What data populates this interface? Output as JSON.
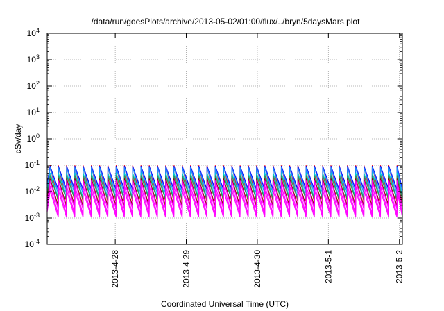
{
  "chart_data": {
    "type": "line",
    "title": "/data/run/goesPlots/archive/2013-05-02/01:00/flux/../bryn/5daysMars.plot",
    "xlabel": "Coordinated Universal Time (UTC)",
    "ylabel": "cSv/day",
    "y_scale": "log",
    "ylim": [
      0.0001,
      10000
    ],
    "xlim": [
      "2013-04-27 01:00",
      "2013-05-02 01:00"
    ],
    "grid": true,
    "legend": "none",
    "x_ticks": [
      "2013-4-28",
      "2013-4-29",
      "2013-4-30",
      "2013-5-1",
      "2013-5-2"
    ],
    "y_ticks": [
      {
        "base": "10",
        "exp": "-4",
        "value": 0.0001
      },
      {
        "base": "10",
        "exp": "-3",
        "value": 0.001
      },
      {
        "base": "10",
        "exp": "-2",
        "value": 0.01
      },
      {
        "base": "10",
        "exp": "-1",
        "value": 0.1
      },
      {
        "base": "10",
        "exp": "0",
        "value": 1
      },
      {
        "base": "10",
        "exp": "1",
        "value": 10
      },
      {
        "base": "10",
        "exp": "2",
        "value": 100
      },
      {
        "base": "10",
        "exp": "3",
        "value": 1000
      },
      {
        "base": "10",
        "exp": "4",
        "value": 10000
      }
    ],
    "oscillation": {
      "cycles_per_day": 8.6,
      "start_date": "2013-04-27 02:00"
    },
    "series": [
      {
        "color": "#ff0000",
        "peak": 0.095,
        "trough": 0.0042
      },
      {
        "color": "#0000ff",
        "peak": 0.09,
        "trough": 0.012
      },
      {
        "color": "#1e90ff",
        "peak": 0.08,
        "trough": 0.0085
      },
      {
        "color": "#00ced1",
        "peak": 0.05,
        "trough": 0.006
      },
      {
        "color": "#2e8b57",
        "peak": 0.04,
        "trough": 0.005
      },
      {
        "color": "#8b0000",
        "peak": 0.03,
        "trough": 0.0028
      },
      {
        "color": "#ff00ff",
        "peak": 0.025,
        "trough": 0.0022
      },
      {
        "color": "#ff00ff",
        "peak": 0.016,
        "trough": 0.0014
      },
      {
        "color": "#ff00ff",
        "peak": 0.011,
        "trough": 0.0011
      }
    ]
  }
}
